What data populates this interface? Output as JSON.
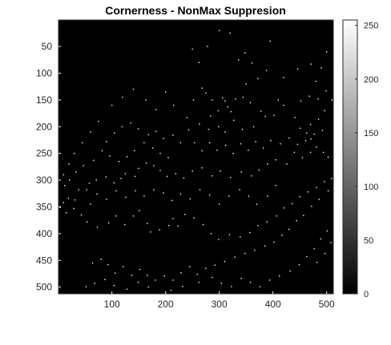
{
  "chart_data": {
    "type": "heatmap",
    "title": "Cornerness - NonMax Suppresion",
    "xlabel": "",
    "ylabel": "",
    "xlim": [
      1,
      512
    ],
    "ylim": [
      1,
      512
    ],
    "y_reversed": true,
    "x_ticks": [
      100,
      200,
      300,
      400,
      500
    ],
    "y_ticks": [
      50,
      100,
      150,
      200,
      250,
      300,
      350,
      400,
      450,
      500
    ],
    "x_tick_labels": [
      "100",
      "200",
      "300",
      "400",
      "500"
    ],
    "y_tick_labels": [
      "50",
      "100",
      "150",
      "200",
      "250",
      "300",
      "350",
      "400",
      "450",
      "500"
    ],
    "colormap": "gray",
    "clim": [
      0,
      255
    ],
    "colorbar_ticks": [
      0,
      50,
      100,
      150,
      200,
      250
    ],
    "colorbar_tick_labels": [
      "0",
      "50",
      "100",
      "150",
      "200",
      "250"
    ],
    "background_value": 0,
    "peak_value": 255,
    "points": [
      [
        300,
        20
      ],
      [
        320,
        25
      ],
      [
        278,
        50
      ],
      [
        395,
        40
      ],
      [
        348,
        62
      ],
      [
        336,
        75
      ],
      [
        361,
        81
      ],
      [
        268,
        128
      ],
      [
        275,
        137
      ],
      [
        287,
        150
      ],
      [
        306,
        146
      ],
      [
        311,
        152
      ],
      [
        330,
        148
      ],
      [
        344,
        145
      ],
      [
        358,
        155
      ],
      [
        316,
        163
      ],
      [
        322,
        172
      ],
      [
        298,
        170
      ],
      [
        284,
        180
      ],
      [
        252,
        150
      ],
      [
        240,
        183
      ],
      [
        243,
        206
      ],
      [
        263,
        195
      ],
      [
        280,
        205
      ],
      [
        299,
        200
      ],
      [
        311,
        210
      ],
      [
        327,
        188
      ],
      [
        343,
        205
      ],
      [
        364,
        200
      ],
      [
        378,
        171
      ],
      [
        386,
        181
      ],
      [
        402,
        179
      ],
      [
        410,
        150
      ],
      [
        420,
        160
      ],
      [
        441,
        183
      ],
      [
        452,
        152
      ],
      [
        468,
        143
      ],
      [
        484,
        148
      ],
      [
        499,
        133
      ],
      [
        510,
        150
      ],
      [
        496,
        170
      ],
      [
        485,
        186
      ],
      [
        470,
        196
      ],
      [
        451,
        203
      ],
      [
        463,
        212
      ],
      [
        471,
        223
      ],
      [
        481,
        238
      ],
      [
        494,
        248
      ],
      [
        503,
        257
      ],
      [
        470,
        248
      ],
      [
        455,
        258
      ],
      [
        440,
        248
      ],
      [
        426,
        270
      ],
      [
        405,
        262
      ],
      [
        390,
        270
      ],
      [
        374,
        281
      ],
      [
        360,
        292
      ],
      [
        341,
        285
      ],
      [
        321,
        295
      ],
      [
        302,
        283
      ],
      [
        287,
        292
      ],
      [
        268,
        277
      ],
      [
        250,
        283
      ],
      [
        234,
        296
      ],
      [
        219,
        288
      ],
      [
        203,
        293
      ],
      [
        190,
        282
      ],
      [
        178,
        273
      ],
      [
        164,
        268
      ],
      [
        150,
        278
      ],
      [
        143,
        293
      ],
      [
        125,
        288
      ],
      [
        117,
        297
      ],
      [
        104,
        305
      ],
      [
        89,
        294
      ],
      [
        71,
        300
      ],
      [
        58,
        306
      ],
      [
        53,
        318
      ],
      [
        38,
        318
      ],
      [
        31,
        337
      ],
      [
        19,
        334
      ],
      [
        10,
        342
      ],
      [
        4,
        351
      ],
      [
        15,
        361
      ],
      [
        29,
        353
      ],
      [
        43,
        365
      ],
      [
        54,
        378
      ],
      [
        73,
        388
      ],
      [
        94,
        380
      ],
      [
        108,
        367
      ],
      [
        124,
        383
      ],
      [
        140,
        367
      ],
      [
        151,
        357
      ],
      [
        166,
        381
      ],
      [
        172,
        397
      ],
      [
        189,
        393
      ],
      [
        206,
        385
      ],
      [
        214,
        372
      ],
      [
        223,
        386
      ],
      [
        236,
        364
      ],
      [
        253,
        371
      ],
      [
        270,
        383
      ],
      [
        285,
        400
      ],
      [
        299,
        411
      ],
      [
        319,
        402
      ],
      [
        339,
        406
      ],
      [
        357,
        398
      ],
      [
        372,
        385
      ],
      [
        389,
        378
      ],
      [
        407,
        367
      ],
      [
        421,
        352
      ],
      [
        436,
        344
      ],
      [
        450,
        331
      ],
      [
        465,
        322
      ],
      [
        481,
        314
      ],
      [
        496,
        303
      ],
      [
        509,
        297
      ],
      [
        503,
        320
      ],
      [
        486,
        336
      ],
      [
        472,
        349
      ],
      [
        457,
        366
      ],
      [
        444,
        376
      ],
      [
        430,
        392
      ],
      [
        417,
        403
      ],
      [
        402,
        416
      ],
      [
        385,
        423
      ],
      [
        366,
        431
      ],
      [
        348,
        437
      ],
      [
        329,
        444
      ],
      [
        310,
        452
      ],
      [
        292,
        459
      ],
      [
        275,
        465
      ],
      [
        259,
        476
      ],
      [
        245,
        462
      ],
      [
        229,
        473
      ],
      [
        214,
        487
      ],
      [
        198,
        479
      ],
      [
        181,
        487
      ],
      [
        166,
        478
      ],
      [
        152,
        467
      ],
      [
        137,
        478
      ],
      [
        121,
        462
      ],
      [
        106,
        474
      ],
      [
        93,
        458
      ],
      [
        80,
        448
      ],
      [
        64,
        455
      ],
      [
        52,
        499
      ],
      [
        68,
        493
      ],
      [
        87,
        486
      ],
      [
        104,
        497
      ],
      [
        128,
        504
      ],
      [
        149,
        491
      ],
      [
        168,
        500
      ],
      [
        210,
        506
      ],
      [
        232,
        499
      ],
      [
        262,
        491
      ],
      [
        287,
        482
      ],
      [
        304,
        493
      ],
      [
        323,
        499
      ],
      [
        341,
        484
      ],
      [
        358,
        491
      ],
      [
        376,
        499
      ],
      [
        394,
        487
      ],
      [
        412,
        479
      ],
      [
        432,
        470
      ],
      [
        449,
        458
      ],
      [
        463,
        443
      ],
      [
        477,
        428
      ],
      [
        489,
        410
      ],
      [
        501,
        395
      ],
      [
        508,
        417
      ],
      [
        497,
        437
      ],
      [
        482,
        454
      ],
      [
        190,
        250
      ],
      [
        205,
        258
      ],
      [
        176,
        240
      ],
      [
        160,
        230
      ],
      [
        142,
        245
      ],
      [
        128,
        256
      ],
      [
        113,
        265
      ],
      [
        96,
        255
      ],
      [
        82,
        245
      ],
      [
        66,
        263
      ],
      [
        47,
        273
      ],
      [
        33,
        285
      ],
      [
        21,
        300
      ],
      [
        12,
        310
      ],
      [
        254,
        230
      ],
      [
        268,
        245
      ],
      [
        282,
        230
      ],
      [
        296,
        244
      ],
      [
        312,
        235
      ],
      [
        326,
        250
      ],
      [
        340,
        232
      ],
      [
        354,
        244
      ],
      [
        368,
        228
      ],
      [
        382,
        240
      ],
      [
        396,
        226
      ],
      [
        414,
        232
      ],
      [
        430,
        221
      ],
      [
        446,
        233
      ],
      [
        461,
        226
      ],
      [
        477,
        214
      ],
      [
        492,
        207
      ],
      [
        228,
        230
      ],
      [
        214,
        216
      ],
      [
        196,
        222
      ],
      [
        182,
        209
      ],
      [
        168,
        215
      ],
      [
        149,
        204
      ],
      [
        135,
        193
      ],
      [
        119,
        200
      ],
      [
        105,
        212
      ],
      [
        90,
        228
      ],
      [
        250,
        55
      ],
      [
        262,
        80
      ],
      [
        350,
        120
      ],
      [
        372,
        110
      ],
      [
        388,
        95
      ],
      [
        420,
        108
      ],
      [
        446,
        92
      ],
      [
        471,
        83
      ],
      [
        200,
        135
      ],
      [
        215,
        160
      ],
      [
        182,
        168
      ],
      [
        163,
        150
      ],
      [
        140,
        130
      ],
      [
        120,
        145
      ],
      [
        100,
        160
      ],
      [
        75,
        190
      ],
      [
        60,
        210
      ],
      [
        45,
        230
      ],
      [
        30,
        250
      ],
      [
        20,
        270
      ],
      [
        10,
        290
      ],
      [
        500,
        60
      ],
      [
        490,
        90
      ],
      [
        480,
        115
      ],
      [
        390,
        330
      ],
      [
        405,
        310
      ],
      [
        370,
        345
      ],
      [
        355,
        330
      ],
      [
        338,
        318
      ],
      [
        318,
        330
      ],
      [
        300,
        345
      ],
      [
        282,
        328
      ],
      [
        264,
        318
      ],
      [
        246,
        335
      ],
      [
        228,
        326
      ],
      [
        212,
        338
      ],
      [
        196,
        324
      ],
      [
        178,
        318
      ],
      [
        160,
        330
      ],
      [
        144,
        320
      ],
      [
        126,
        332
      ],
      [
        108,
        320
      ],
      [
        90,
        336
      ],
      [
        72,
        326
      ],
      [
        60,
        345
      ]
    ]
  }
}
